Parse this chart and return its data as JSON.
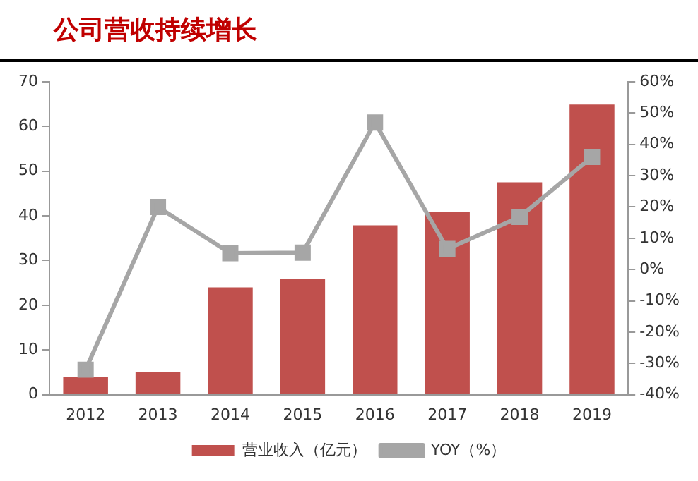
{
  "chart_data": {
    "type": "bar",
    "title": "公司营收持续增长",
    "categories": [
      "2012",
      "2013",
      "2014",
      "2015",
      "2016",
      "2017",
      "2018",
      "2019"
    ],
    "series": [
      {
        "name": "营业收入（亿元）",
        "color": "#c0504d",
        "values": [
          4,
          5,
          24,
          25.8,
          37.9,
          40.8,
          47.5,
          64.9
        ]
      },
      {
        "name": "YOY（%）",
        "type": "line",
        "axis": "y2",
        "color": "#a6a6a6",
        "marker": "square",
        "values": [
          -32,
          20,
          5.2,
          5.4,
          47,
          6.6,
          16.8,
          36
        ]
      }
    ],
    "ylim": [
      0,
      70
    ],
    "yticks": [
      0,
      10,
      20,
      30,
      40,
      50,
      60,
      70
    ],
    "y2lim": [
      -40,
      60
    ],
    "y2ticks": [
      {
        "value": -40,
        "label": "-40%"
      },
      {
        "value": -30,
        "label": "-30%"
      },
      {
        "value": -20,
        "label": "-20%"
      },
      {
        "value": -10,
        "label": "-10%"
      },
      {
        "value": 0,
        "label": "0%"
      },
      {
        "value": 10,
        "label": "10%"
      },
      {
        "value": 20,
        "label": "20%"
      },
      {
        "value": 30,
        "label": "30%"
      },
      {
        "value": 40,
        "label": "40%"
      },
      {
        "value": 50,
        "label": "50%"
      },
      {
        "value": 60,
        "label": "60%"
      }
    ],
    "grid": false,
    "legend": "bottom"
  }
}
